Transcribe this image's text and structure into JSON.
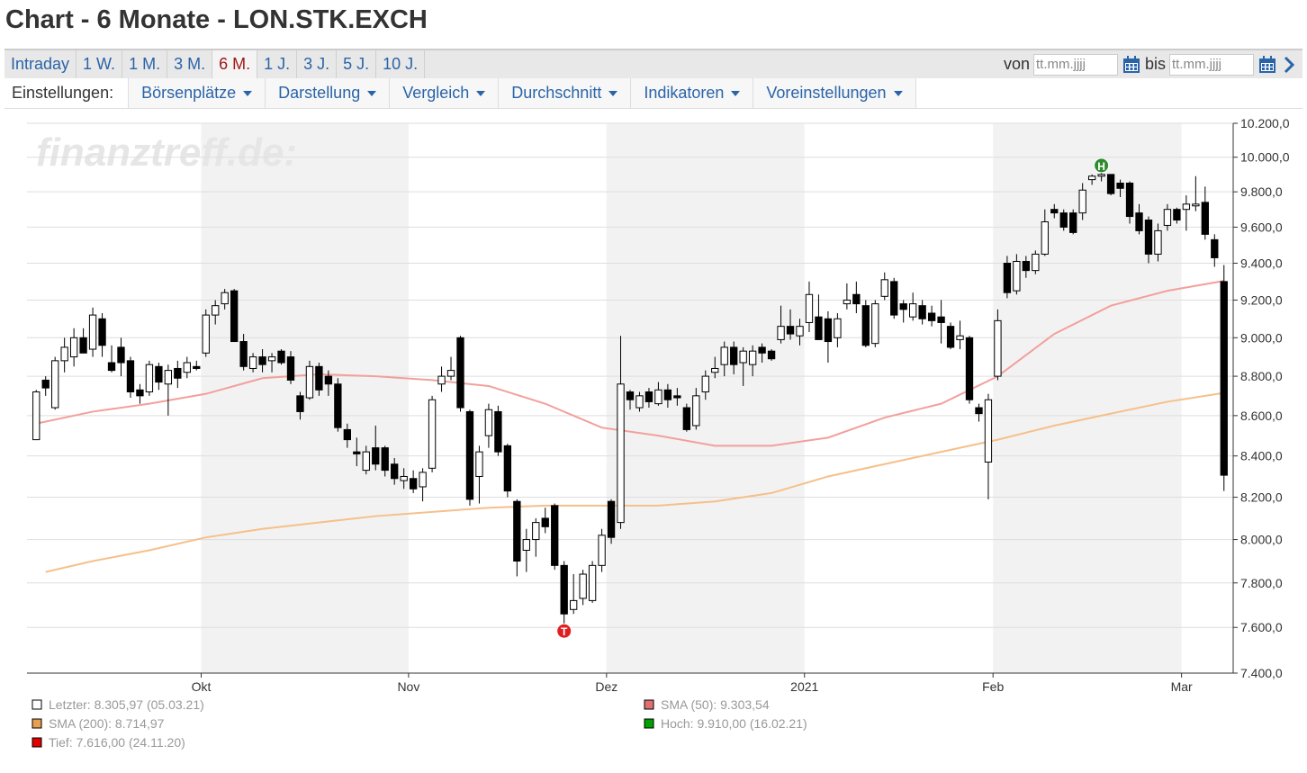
{
  "header": {
    "title": "Chart - 6 Monate - LON.STK.EXCH"
  },
  "periods": {
    "items": [
      "Intraday",
      "1 W.",
      "1 M.",
      "3 M.",
      "6 M.",
      "1 J.",
      "3 J.",
      "5 J.",
      "10 J."
    ],
    "active": "6 M."
  },
  "date_range": {
    "from_label": "von",
    "from_placeholder": "tt.mm.jjjj",
    "to_label": "bis",
    "to_placeholder": "tt.mm.jjjj"
  },
  "menus": {
    "label": "Einstellungen:",
    "items": [
      "Börsenplätze",
      "Darstellung",
      "Vergleich",
      "Durchschnitt",
      "Indikatoren",
      "Voreinstellungen"
    ]
  },
  "chart_data": {
    "type": "candlestick",
    "watermark": "finanztreff.de:",
    "log_scale": true,
    "categories": [
      null,
      null,
      null,
      null,
      null,
      null,
      null,
      null,
      null,
      null,
      null,
      null,
      null,
      null,
      null,
      null,
      null,
      null,
      "Okt",
      null,
      null,
      null,
      null,
      null,
      null,
      null,
      null,
      null,
      null,
      null,
      null,
      null,
      null,
      null,
      null,
      null,
      null,
      null,
      null,
      null,
      "Nov",
      null,
      null,
      null,
      null,
      null,
      null,
      null,
      null,
      null,
      null,
      null,
      null,
      null,
      null,
      null,
      null,
      null,
      null,
      null,
      null,
      "Dez",
      null,
      null,
      null,
      null,
      null,
      null,
      null,
      null,
      null,
      null,
      null,
      null,
      null,
      null,
      null,
      null,
      null,
      null,
      null,
      null,
      "2021",
      null,
      null,
      null,
      null,
      null,
      null,
      null,
      null,
      null,
      null,
      null,
      null,
      null,
      null,
      null,
      null,
      null,
      null,
      null,
      "Feb",
      null,
      null,
      null,
      null,
      null,
      null,
      null,
      null,
      null,
      null,
      null,
      null,
      null,
      null,
      null,
      null,
      null,
      null,
      null,
      "Mar",
      null,
      null,
      null,
      null
    ],
    "open": [
      8480,
      8780,
      8640,
      8880,
      8900,
      9000,
      8940,
      9100,
      8870,
      8950,
      8880,
      8730,
      8720,
      8850,
      8760,
      8840,
      8820,
      8850,
      8920,
      9120,
      9180,
      9250,
      8980,
      8840,
      8900,
      8880,
      8930,
      8900,
      8700,
      8690,
      8850,
      8800,
      8760,
      8530,
      8420,
      8330,
      8440,
      8440,
      8360,
      8280,
      8290,
      8250,
      8340,
      8760,
      8800,
      9000,
      8620,
      8300,
      8500,
      8620,
      8450,
      8180,
      7950,
      8000,
      8100,
      8160,
      7880,
      7680,
      7730,
      7720,
      7880,
      8180,
      8080,
      8720,
      8640,
      8720,
      8660,
      8730,
      8700,
      8640,
      8550,
      8720,
      8820,
      8860,
      8950,
      8870,
      8860,
      8950,
      8930,
      8990,
      9060,
      9010,
      9080,
      9110,
      9100,
      9000,
      9180,
      9230,
      9170,
      8970,
      9220,
      9300,
      9180,
      9110,
      9170,
      9130,
      9110,
      9060,
      8990,
      9000,
      8640,
      8370,
      8800,
      9400,
      9250,
      9410,
      9360,
      9450,
      9700,
      9680,
      9680,
      9680,
      9870,
      9890,
      9900,
      9850,
      9850,
      9680,
      9640,
      9450,
      9610,
      9700,
      9700,
      9720,
      9740,
      9530,
      9300
    ],
    "high": [
      8730,
      8800,
      8900,
      9000,
      9050,
      9050,
      9160,
      9130,
      8960,
      9000,
      8900,
      8760,
      8880,
      8870,
      8860,
      8880,
      8900,
      8880,
      9150,
      9200,
      9260,
      9260,
      9020,
      8920,
      8940,
      8920,
      8940,
      8930,
      8720,
      8880,
      8870,
      8830,
      8790,
      8560,
      8490,
      8450,
      8550,
      8450,
      8390,
      8340,
      8330,
      8340,
      8700,
      8850,
      8900,
      9010,
      8630,
      8450,
      8660,
      8650,
      8460,
      8190,
      8050,
      8100,
      8150,
      8170,
      7900,
      7840,
      7860,
      7900,
      8050,
      8190,
      9010,
      8730,
      8720,
      8740,
      8770,
      8760,
      8740,
      8660,
      8740,
      8830,
      8900,
      8980,
      8980,
      8950,
      8960,
      8970,
      8940,
      9170,
      9150,
      9100,
      9300,
      9230,
      9140,
      9130,
      9290,
      9300,
      9200,
      9200,
      9350,
      9320,
      9200,
      9240,
      9200,
      9170,
      9200,
      9080,
      9090,
      9010,
      8660,
      8710,
      9150,
      9440,
      9450,
      9440,
      9470,
      9700,
      9730,
      9700,
      9700,
      9850,
      9900,
      9910,
      9900,
      9870,
      9860,
      9730,
      9660,
      9620,
      9730,
      9710,
      9780,
      9890,
      9830,
      9560,
      9390
    ],
    "low": [
      8480,
      8700,
      8630,
      8820,
      8850,
      8930,
      8900,
      8900,
      8820,
      8800,
      8690,
      8660,
      8700,
      8730,
      8600,
      8740,
      8790,
      8830,
      8900,
      9070,
      9150,
      9000,
      8830,
      8820,
      8820,
      8820,
      8860,
      8760,
      8580,
      8680,
      8700,
      8700,
      8520,
      8440,
      8350,
      8310,
      8330,
      8300,
      8260,
      8240,
      8220,
      8180,
      8320,
      8720,
      8780,
      8620,
      8160,
      8170,
      8440,
      8400,
      8200,
      7830,
      7850,
      7920,
      8030,
      7860,
      7616,
      7660,
      7700,
      7710,
      7850,
      7980,
      8050,
      8630,
      8620,
      8640,
      8650,
      8640,
      8650,
      8520,
      8530,
      8680,
      8790,
      8800,
      8810,
      8750,
      8800,
      8870,
      8880,
      8970,
      8990,
      8960,
      9030,
      8990,
      8870,
      8950,
      9150,
      9130,
      8950,
      8950,
      9200,
      9100,
      9080,
      9090,
      9070,
      9060,
      8970,
      8940,
      8940,
      8660,
      8570,
      8190,
      8780,
      9210,
      9230,
      9320,
      9340,
      9440,
      9650,
      9580,
      9560,
      9640,
      9840,
      9860,
      9780,
      9770,
      9620,
      9560,
      9400,
      9410,
      9580,
      9620,
      9580,
      9690,
      9530,
      9380,
      8230
    ],
    "close": [
      8720,
      8740,
      8880,
      8950,
      9000,
      8920,
      9120,
      8960,
      8830,
      8870,
      8720,
      8700,
      8860,
      8770,
      8830,
      8790,
      8870,
      8840,
      9120,
      9170,
      9240,
      8980,
      8850,
      8900,
      8860,
      8900,
      8870,
      8780,
      8620,
      8850,
      8730,
      8760,
      8540,
      8480,
      8410,
      8420,
      8360,
      8330,
      8290,
      8300,
      8240,
      8320,
      8680,
      8800,
      8830,
      8640,
      8190,
      8420,
      8630,
      8420,
      8230,
      7900,
      8000,
      8080,
      8060,
      7880,
      7660,
      7720,
      7840,
      7880,
      8020,
      8010,
      8760,
      8680,
      8700,
      8670,
      8730,
      8680,
      8690,
      8530,
      8700,
      8800,
      8840,
      8950,
      8860,
      8930,
      8930,
      8920,
      8890,
      9060,
      9020,
      9060,
      9230,
      8990,
      8980,
      9100,
      9200,
      9180,
      8960,
      9180,
      9310,
      9120,
      9150,
      9180,
      9100,
      9090,
      9080,
      8950,
      9010,
      8680,
      8610,
      8680,
      9090,
      9240,
      9410,
      9360,
      9450,
      9630,
      9680,
      9600,
      9570,
      9810,
      9890,
      9900,
      9790,
      9820,
      9660,
      9580,
      9450,
      9580,
      9700,
      9640,
      9730,
      9730,
      9560,
      9430,
      8305.97
    ],
    "series": [
      {
        "color": "#f2a09c",
        "x": [
          0,
          6,
          12,
          18,
          24,
          30,
          36,
          42,
          48,
          54,
          60,
          66,
          72,
          78,
          84,
          90,
          96,
          102,
          108,
          114,
          120,
          126
        ],
        "values": [
          8560,
          8620,
          8660,
          8710,
          8790,
          8810,
          8800,
          8780,
          8750,
          8660,
          8540,
          8500,
          8450,
          8450,
          8490,
          8590,
          8660,
          8800,
          9020,
          9170,
          9250,
          9303.54
        ]
      },
      {
        "color": "#f5c08a",
        "x": [
          1,
          6,
          12,
          18,
          24,
          30,
          36,
          42,
          48,
          54,
          60,
          66,
          72,
          78,
          84,
          90,
          96,
          102,
          108,
          114,
          120,
          126
        ],
        "values": [
          7850,
          7900,
          7950,
          8010,
          8050,
          8080,
          8110,
          8130,
          8150,
          8160,
          8160,
          8160,
          8180,
          8220,
          8300,
          8360,
          8420,
          8480,
          8550,
          8610,
          8670,
          8714.97
        ]
      }
    ],
    "markers": [
      {
        "label": "H",
        "value": 9910,
        "field": "high",
        "color": "#2e8b2e"
      },
      {
        "label": "T",
        "value": 7616,
        "field": "low",
        "color": "#e02020"
      }
    ],
    "ylim": [
      7400,
      10200
    ],
    "yticks": [
      {
        "value": 7400,
        "label": "7.400,0"
      },
      {
        "value": 7600,
        "label": "7.600,0"
      },
      {
        "value": 7800,
        "label": "7.800,0"
      },
      {
        "value": 8000,
        "label": "8.000,0"
      },
      {
        "value": 8200,
        "label": "8.200,0"
      },
      {
        "value": 8400,
        "label": "8.400,0"
      },
      {
        "value": 8600,
        "label": "8.600,0"
      },
      {
        "value": 8800,
        "label": "8.800,0"
      },
      {
        "value": 9000,
        "label": "9.000,0"
      },
      {
        "value": 9200,
        "label": "9.200,0"
      },
      {
        "value": 9400,
        "label": "9.400,0"
      },
      {
        "value": 9600,
        "label": "9.600,0"
      },
      {
        "value": 9800,
        "label": "9.800,0"
      },
      {
        "value": 10000,
        "label": "10.000,0"
      },
      {
        "value": 10200,
        "label": "10.200,0"
      }
    ],
    "grid": true,
    "legend": [
      {
        "label": "Letzter: 8.305,97 (05.03.21)",
        "color": "#ffffff"
      },
      {
        "label": "SMA (200): 8.714,97",
        "color": "#e8a050"
      },
      {
        "label": "Tief: 7.616,00 (24.11.20)",
        "color": "#e00000"
      },
      {
        "label": "SMA (50): 9.303,54",
        "color": "#e07070"
      },
      {
        "label": "Hoch: 9.910,00 (16.02.21)",
        "color": "#00a000"
      }
    ]
  }
}
